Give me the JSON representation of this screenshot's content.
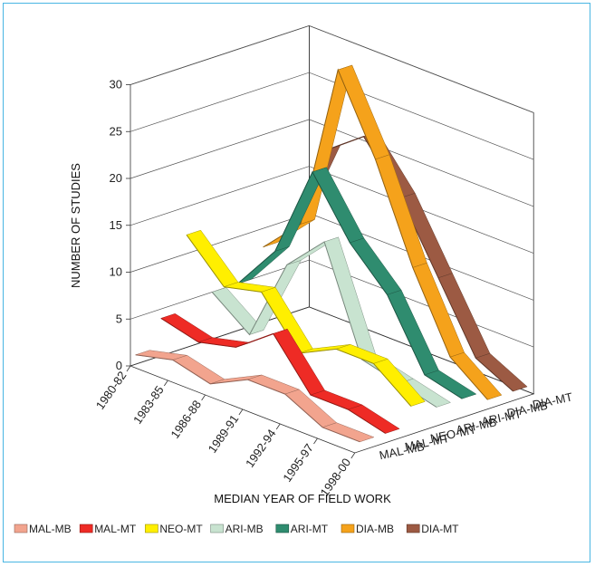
{
  "chart_data": {
    "type": "line",
    "subtype": "3d-ribbon",
    "title": "",
    "xlabel": "MEDIAN YEAR OF FIELD WORK",
    "ylabel": "NUMBER OF STUDIES",
    "zlabel": "",
    "ylim": [
      0,
      30
    ],
    "yticks": [
      "0",
      "5",
      "10",
      "15",
      "20",
      "25",
      "30"
    ],
    "categories": [
      "1980-82",
      "1983-85",
      "1986-88",
      "1989-91",
      "1992-94",
      "1995-97",
      "1998-00"
    ],
    "grid": true,
    "legend_position": "bottom",
    "series": [
      {
        "name": "MAL-MB",
        "color": "#f2a48e",
        "values": [
          1,
          2,
          1,
          3,
          3,
          1,
          1
        ]
      },
      {
        "name": "MAL-MT",
        "color": "#ee2b25",
        "values": [
          4,
          3,
          4,
          7,
          2,
          2,
          1
        ]
      },
      {
        "name": "NEO-MT",
        "color": "#ffef00",
        "values": [
          12,
          8,
          9,
          4,
          6,
          6,
          3
        ]
      },
      {
        "name": "ARI-MB",
        "color": "#c8e3d0",
        "values": [
          5,
          2,
          11,
          15,
          4,
          3,
          2
        ]
      },
      {
        "name": "ARI-MT",
        "color": "#2f8c6f",
        "values": [
          5,
          10,
          20,
          14,
          10,
          3,
          2
        ]
      },
      {
        "name": "DIA-MB",
        "color": "#f5a21b",
        "values": [
          8,
          12,
          30,
          22,
          12,
          4,
          1
        ]
      },
      {
        "name": "DIA-MT",
        "color": "#9c5a43",
        "values": [
          9,
          19,
          22,
          17,
          10,
          3,
          1
        ]
      }
    ]
  }
}
